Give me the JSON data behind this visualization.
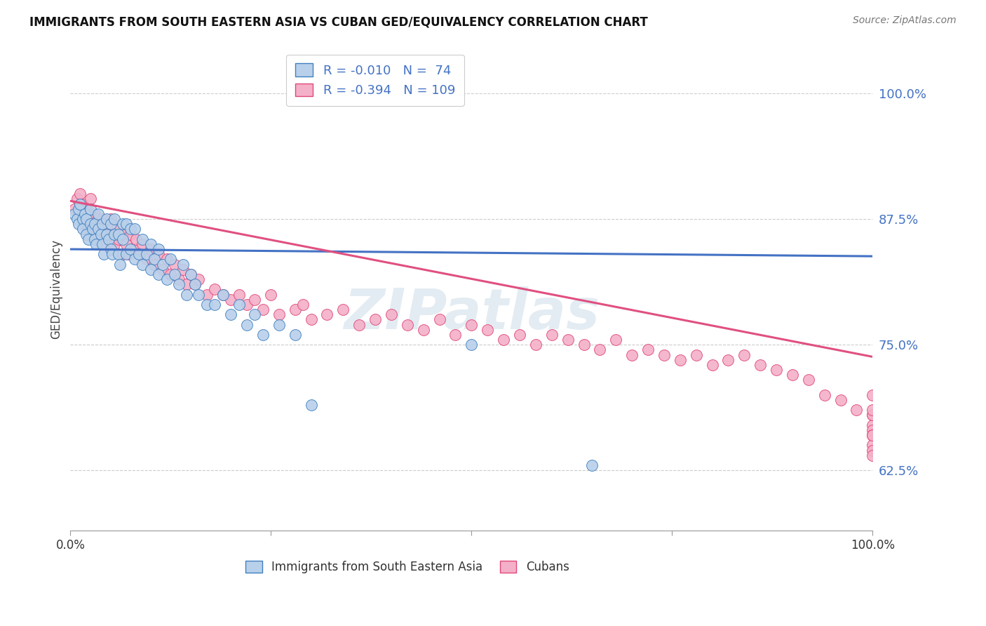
{
  "title": "IMMIGRANTS FROM SOUTH EASTERN ASIA VS CUBAN GED/EQUIVALENCY CORRELATION CHART",
  "source": "Source: ZipAtlas.com",
  "ylabel": "GED/Equivalency",
  "ytick_labels": [
    "62.5%",
    "75.0%",
    "87.5%",
    "100.0%"
  ],
  "ytick_values": [
    0.625,
    0.75,
    0.875,
    1.0
  ],
  "xlim": [
    0.0,
    1.0
  ],
  "ylim": [
    0.565,
    1.045
  ],
  "legend_blue_R": "-0.010",
  "legend_blue_N": "74",
  "legend_pink_R": "-0.394",
  "legend_pink_N": "109",
  "legend_label_blue": "Immigrants from South Eastern Asia",
  "legend_label_pink": "Cubans",
  "blue_fill_color": "#b8d0ea",
  "blue_edge_color": "#4080c0",
  "pink_fill_color": "#f4b0c8",
  "pink_edge_color": "#e04878",
  "blue_line_color": "#4472c4",
  "pink_line_color": "#e05080",
  "watermark": "ZIPatlas",
  "blue_line_x": [
    0.0,
    1.0
  ],
  "blue_line_y": [
    0.845,
    0.838
  ],
  "pink_line_x": [
    0.0,
    1.0
  ],
  "pink_line_y": [
    0.893,
    0.738
  ],
  "blue_scatter_x": [
    0.005,
    0.008,
    0.01,
    0.01,
    0.012,
    0.015,
    0.015,
    0.018,
    0.02,
    0.02,
    0.022,
    0.025,
    0.025,
    0.028,
    0.03,
    0.03,
    0.032,
    0.035,
    0.035,
    0.038,
    0.04,
    0.04,
    0.042,
    0.045,
    0.045,
    0.048,
    0.05,
    0.05,
    0.052,
    0.055,
    0.055,
    0.06,
    0.06,
    0.062,
    0.065,
    0.065,
    0.07,
    0.07,
    0.075,
    0.075,
    0.08,
    0.08,
    0.085,
    0.09,
    0.09,
    0.095,
    0.1,
    0.1,
    0.105,
    0.11,
    0.11,
    0.115,
    0.12,
    0.125,
    0.13,
    0.135,
    0.14,
    0.145,
    0.15,
    0.155,
    0.16,
    0.17,
    0.18,
    0.19,
    0.2,
    0.21,
    0.22,
    0.23,
    0.24,
    0.26,
    0.28,
    0.3,
    0.5,
    0.65
  ],
  "blue_scatter_y": [
    0.88,
    0.875,
    0.87,
    0.885,
    0.89,
    0.875,
    0.865,
    0.88,
    0.86,
    0.875,
    0.855,
    0.87,
    0.885,
    0.865,
    0.855,
    0.87,
    0.85,
    0.865,
    0.88,
    0.86,
    0.85,
    0.87,
    0.84,
    0.86,
    0.875,
    0.855,
    0.845,
    0.87,
    0.84,
    0.86,
    0.875,
    0.84,
    0.86,
    0.83,
    0.855,
    0.87,
    0.84,
    0.87,
    0.845,
    0.865,
    0.835,
    0.865,
    0.84,
    0.83,
    0.855,
    0.84,
    0.825,
    0.85,
    0.835,
    0.82,
    0.845,
    0.83,
    0.815,
    0.835,
    0.82,
    0.81,
    0.83,
    0.8,
    0.82,
    0.81,
    0.8,
    0.79,
    0.79,
    0.8,
    0.78,
    0.79,
    0.77,
    0.78,
    0.76,
    0.77,
    0.76,
    0.69,
    0.75,
    0.63
  ],
  "pink_scatter_x": [
    0.005,
    0.008,
    0.01,
    0.012,
    0.015,
    0.015,
    0.018,
    0.02,
    0.022,
    0.025,
    0.025,
    0.028,
    0.03,
    0.03,
    0.032,
    0.035,
    0.038,
    0.04,
    0.04,
    0.042,
    0.045,
    0.048,
    0.05,
    0.05,
    0.055,
    0.058,
    0.06,
    0.065,
    0.065,
    0.07,
    0.072,
    0.075,
    0.08,
    0.082,
    0.085,
    0.09,
    0.095,
    0.1,
    0.105,
    0.11,
    0.115,
    0.12,
    0.125,
    0.13,
    0.135,
    0.14,
    0.145,
    0.15,
    0.155,
    0.16,
    0.17,
    0.18,
    0.19,
    0.2,
    0.21,
    0.22,
    0.23,
    0.24,
    0.25,
    0.26,
    0.28,
    0.29,
    0.3,
    0.32,
    0.34,
    0.36,
    0.38,
    0.4,
    0.42,
    0.44,
    0.46,
    0.48,
    0.5,
    0.52,
    0.54,
    0.56,
    0.58,
    0.6,
    0.62,
    0.64,
    0.66,
    0.68,
    0.7,
    0.72,
    0.74,
    0.76,
    0.78,
    0.8,
    0.82,
    0.84,
    0.86,
    0.88,
    0.9,
    0.92,
    0.94,
    0.96,
    0.98,
    1.0,
    1.0,
    1.0,
    1.0,
    1.0,
    1.0,
    1.0,
    1.0,
    1.0,
    1.0,
    1.0,
    1.0
  ],
  "pink_scatter_y": [
    0.885,
    0.895,
    0.88,
    0.9,
    0.875,
    0.89,
    0.87,
    0.885,
    0.865,
    0.88,
    0.895,
    0.87,
    0.865,
    0.88,
    0.855,
    0.875,
    0.87,
    0.86,
    0.875,
    0.85,
    0.87,
    0.855,
    0.86,
    0.875,
    0.85,
    0.865,
    0.855,
    0.84,
    0.86,
    0.85,
    0.84,
    0.86,
    0.845,
    0.855,
    0.84,
    0.85,
    0.835,
    0.845,
    0.83,
    0.84,
    0.825,
    0.835,
    0.82,
    0.83,
    0.815,
    0.825,
    0.81,
    0.82,
    0.81,
    0.815,
    0.8,
    0.805,
    0.8,
    0.795,
    0.8,
    0.79,
    0.795,
    0.785,
    0.8,
    0.78,
    0.785,
    0.79,
    0.775,
    0.78,
    0.785,
    0.77,
    0.775,
    0.78,
    0.77,
    0.765,
    0.775,
    0.76,
    0.77,
    0.765,
    0.755,
    0.76,
    0.75,
    0.76,
    0.755,
    0.75,
    0.745,
    0.755,
    0.74,
    0.745,
    0.74,
    0.735,
    0.74,
    0.73,
    0.735,
    0.74,
    0.73,
    0.725,
    0.72,
    0.715,
    0.7,
    0.695,
    0.685,
    0.68,
    0.67,
    0.665,
    0.66,
    0.68,
    0.7,
    0.685,
    0.66,
    0.65,
    0.645,
    0.66,
    0.64
  ]
}
